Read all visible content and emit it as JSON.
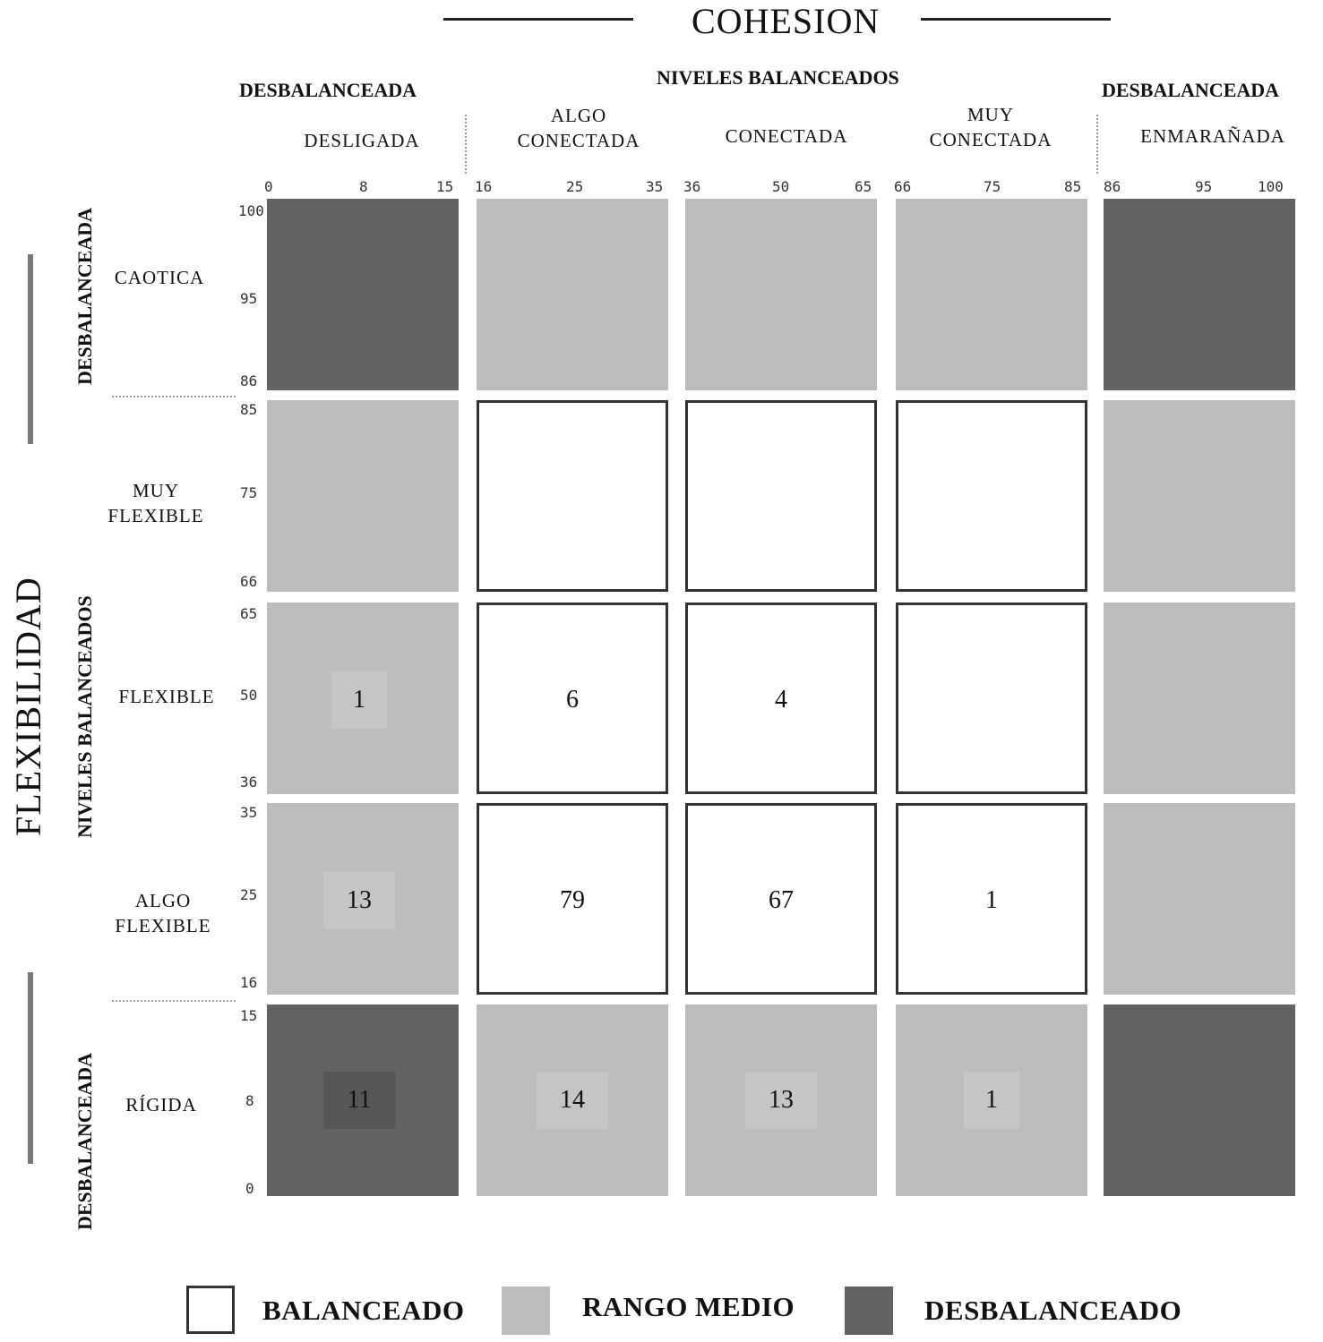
{
  "title_top": "COHESION",
  "title_left": "FLEXIBILIDAD",
  "cohesion_groups": {
    "left": "DESBALANCEADA",
    "middle": "NIVELES BALANCEADOS",
    "right": "DESBALANCEADA"
  },
  "flex_groups": {
    "top": "DESBALANCEADA",
    "middle": "NIVELES BALANCEADOS",
    "bottom": "DESBALANCEADA"
  },
  "columns": [
    {
      "label1": "",
      "label2": "DESLIGADA",
      "ticks": [
        "0",
        "8",
        "15"
      ]
    },
    {
      "label1": "ALGO",
      "label2": "CONECTADA",
      "ticks": [
        "16",
        "25",
        "35"
      ]
    },
    {
      "label1": "",
      "label2": "CONECTADA",
      "ticks": [
        "36",
        "50",
        "65"
      ]
    },
    {
      "label1": "MUY",
      "label2": "CONECTADA",
      "ticks": [
        "66",
        "75",
        "85"
      ]
    },
    {
      "label1": "",
      "label2": "ENMARAÑADA",
      "ticks": [
        "86",
        "95",
        "100"
      ]
    }
  ],
  "rows": [
    {
      "label1": "",
      "label2": "CAOTICA",
      "ticks": [
        "100",
        "95",
        "86"
      ]
    },
    {
      "label1": "MUY",
      "label2": "FLEXIBLE",
      "ticks": [
        "85",
        "75",
        "66"
      ]
    },
    {
      "label1": "",
      "label2": "FLEXIBLE",
      "ticks": [
        "65",
        "50",
        "36"
      ]
    },
    {
      "label1": "ALGO",
      "label2": "FLEXIBLE",
      "ticks": [
        "35",
        "25",
        "16"
      ]
    },
    {
      "label1": "",
      "label2": "RÍGIDA",
      "ticks": [
        "15",
        "8",
        "0"
      ]
    }
  ],
  "cell_values": [
    [
      "",
      "",
      "",
      "",
      ""
    ],
    [
      "",
      "",
      "",
      "",
      ""
    ],
    [
      "1",
      "6",
      "4",
      "",
      ""
    ],
    [
      "13",
      "79",
      "67",
      "1",
      ""
    ],
    [
      "11",
      "14",
      "13",
      "1",
      ""
    ]
  ],
  "legend": {
    "balanced": "BALANCEADO",
    "mid": "RANGO MEDIO",
    "unbalanced": "DESBALANCEADO"
  },
  "colors": {
    "balanced": "#ffffff",
    "mid": "#bbbcbe",
    "unbalanced": "#636365"
  }
}
